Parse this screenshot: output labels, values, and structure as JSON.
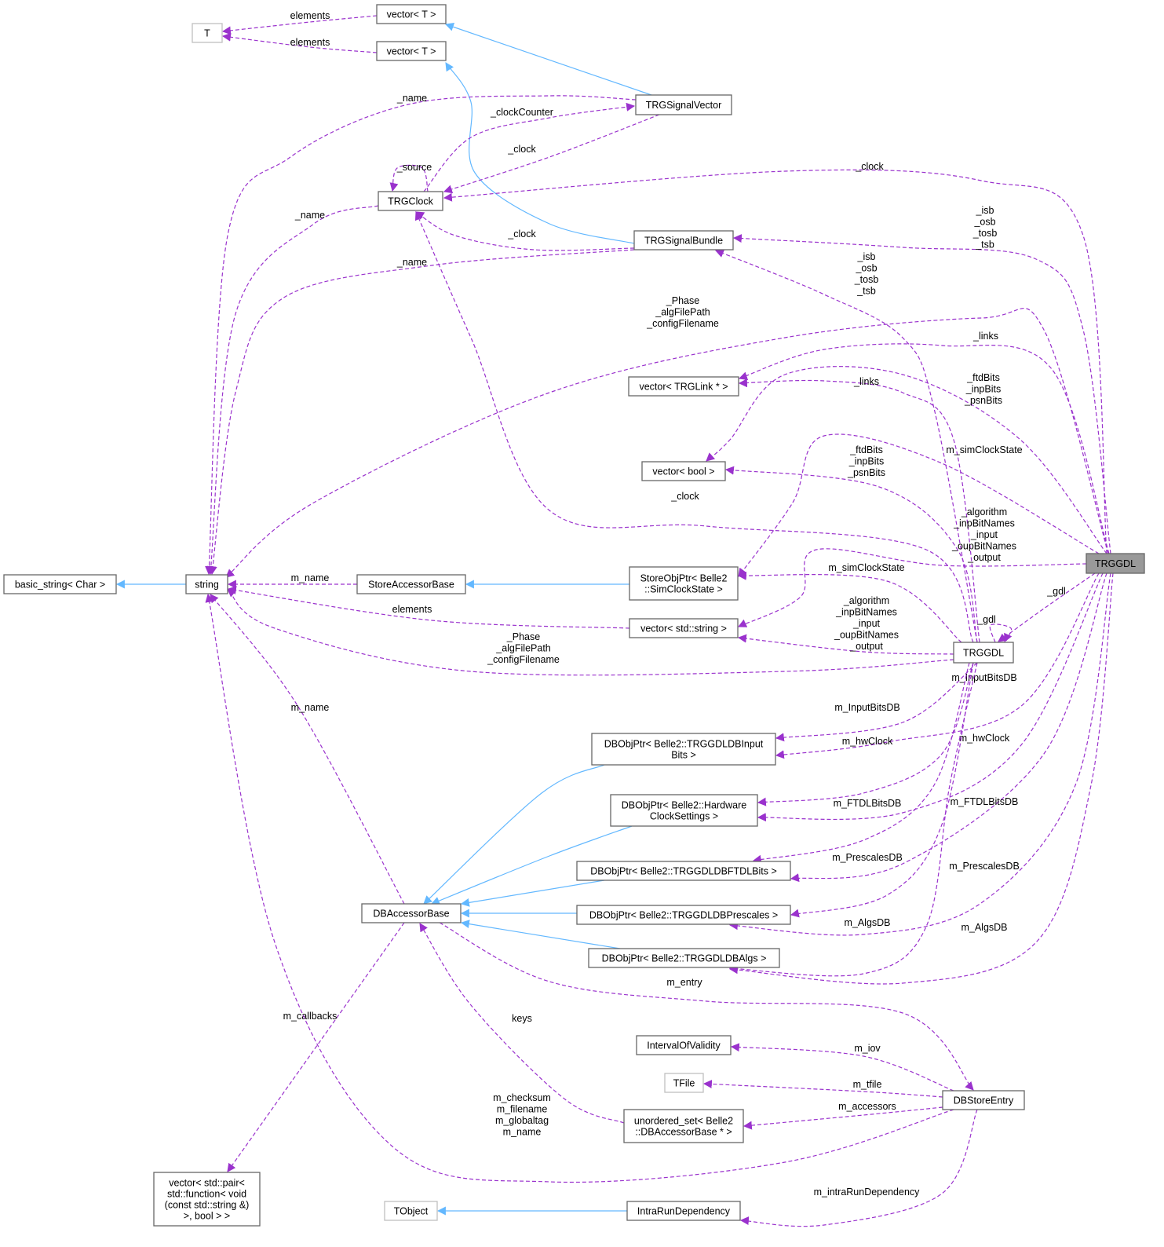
{
  "colors": {
    "member_edge": "#9a32cd",
    "inherit_edge": "#63b8ff",
    "focus_fill": "#999999"
  },
  "nodes": [
    {
      "id": "T",
      "label": [
        "T"
      ],
      "style": "gray"
    },
    {
      "id": "vecT1",
      "label": [
        "vector< T >"
      ]
    },
    {
      "id": "vecT2",
      "label": [
        "vector< T >"
      ]
    },
    {
      "id": "sigvec",
      "label": [
        "TRGSignalVector"
      ]
    },
    {
      "id": "clock",
      "label": [
        "TRGClock"
      ]
    },
    {
      "id": "bundle",
      "label": [
        "TRGSignalBundle"
      ]
    },
    {
      "id": "vlink",
      "label": [
        "vector< TRGLink * >"
      ]
    },
    {
      "id": "vbool",
      "label": [
        "vector< bool >"
      ]
    },
    {
      "id": "storeobj",
      "label": [
        "StoreObjPtr< Belle2",
        "::SimClockState >"
      ]
    },
    {
      "id": "vstr",
      "label": [
        "vector< std::string >"
      ]
    },
    {
      "id": "gdl",
      "label": [
        "TRGGDL"
      ],
      "style": "focus"
    },
    {
      "id": "gdl2",
      "label": [
        "TRGGDL"
      ]
    },
    {
      "id": "bstr",
      "label": [
        "basic_string< Char >"
      ]
    },
    {
      "id": "str",
      "label": [
        "string"
      ]
    },
    {
      "id": "sab",
      "label": [
        "StoreAccessorBase"
      ]
    },
    {
      "id": "dbin",
      "label": [
        "DBObjPtr< Belle2::TRGGDLDBInput",
        "Bits >"
      ]
    },
    {
      "id": "dbhw",
      "label": [
        "DBObjPtr< Belle2::Hardware",
        "ClockSettings >"
      ]
    },
    {
      "id": "dbftdl",
      "label": [
        "DBObjPtr< Belle2::TRGGDLDBFTDLBits >"
      ]
    },
    {
      "id": "dbpre",
      "label": [
        "DBObjPtr< Belle2::TRGGDLDBPrescales >"
      ]
    },
    {
      "id": "dbalg",
      "label": [
        "DBObjPtr< Belle2::TRGGDLDBAlgs >"
      ]
    },
    {
      "id": "dbab",
      "label": [
        "DBAccessorBase"
      ]
    },
    {
      "id": "iov",
      "label": [
        "IntervalOfValidity"
      ]
    },
    {
      "id": "tfile",
      "label": [
        "TFile"
      ],
      "style": "gray"
    },
    {
      "id": "uset",
      "label": [
        "unordered_set< Belle2",
        "::DBAccessorBase * >"
      ]
    },
    {
      "id": "dbse",
      "label": [
        "DBStoreEntry"
      ]
    },
    {
      "id": "vpair",
      "label": [
        "vector< std::pair<",
        "std::function< void",
        "(const std::string &)",
        ">, bool > >"
      ]
    },
    {
      "id": "tobj",
      "label": [
        "TObject"
      ],
      "style": "gray"
    },
    {
      "id": "intra",
      "label": [
        "IntraRunDependency"
      ]
    }
  ],
  "edges": [
    {
      "from": "vecT1",
      "to": "T",
      "kind": "member",
      "label": [
        "elements"
      ]
    },
    {
      "from": "vecT2",
      "to": "T",
      "kind": "member",
      "label": [
        "elements"
      ]
    },
    {
      "from": "sigvec",
      "to": "vecT1",
      "kind": "inherit",
      "label": []
    },
    {
      "from": "bundle",
      "to": "vecT2",
      "kind": "inherit",
      "label": []
    },
    {
      "from": "sigvec",
      "to": "str",
      "kind": "member",
      "label": [
        "_name"
      ]
    },
    {
      "from": "clock",
      "to": "sigvec",
      "kind": "member",
      "label": [
        "_clockCounter"
      ]
    },
    {
      "from": "sigvec",
      "to": "clock",
      "kind": "member",
      "label": [
        "_clock"
      ]
    },
    {
      "from": "clock",
      "to": "clock",
      "kind": "member",
      "label": [
        "_source"
      ]
    },
    {
      "from": "gdl",
      "to": "clock",
      "kind": "member",
      "label": [
        "_clock"
      ]
    },
    {
      "from": "clock",
      "to": "str",
      "kind": "member",
      "label": [
        "_name"
      ]
    },
    {
      "from": "bundle",
      "to": "clock",
      "kind": "member",
      "label": [
        "_clock"
      ]
    },
    {
      "from": "bundle",
      "to": "str",
      "kind": "member",
      "label": [
        "_name"
      ]
    },
    {
      "from": "gdl",
      "to": "bundle",
      "kind": "member",
      "label": [
        "_isb",
        "_osb",
        "_tosb",
        "_tsb"
      ]
    },
    {
      "from": "gdl2",
      "to": "bundle",
      "kind": "member",
      "label": [
        "_isb",
        "_osb",
        "_tosb",
        "_tsb"
      ]
    },
    {
      "from": "gdl",
      "to": "str",
      "kind": "member",
      "label": [
        "_Phase",
        "_algFilePath",
        "_configFilename"
      ]
    },
    {
      "from": "gdl",
      "to": "vlink",
      "kind": "member",
      "label": [
        "_links"
      ]
    },
    {
      "from": "gdl2",
      "to": "vlink",
      "kind": "member",
      "label": [
        "_links"
      ]
    },
    {
      "from": "gdl",
      "to": "vbool",
      "kind": "member",
      "label": [
        "_ftdBits",
        "_inpBits",
        "_psnBits"
      ]
    },
    {
      "from": "gdl2",
      "to": "vbool",
      "kind": "member",
      "label": [
        "_ftdBits",
        "_inpBits",
        "_psnBits"
      ]
    },
    {
      "from": "gdl",
      "to": "storeobj",
      "kind": "member",
      "label": [
        "m_simClockState"
      ]
    },
    {
      "from": "gdl2",
      "to": "clock",
      "kind": "member",
      "label": [
        "_clock"
      ]
    },
    {
      "from": "gdl",
      "to": "vstr",
      "kind": "member",
      "label": [
        "_algorithm",
        "_inpBitNames",
        "_input",
        "_oupBitNames",
        "_output"
      ]
    },
    {
      "from": "gdl2",
      "to": "storeobj",
      "kind": "member",
      "label": [
        "m_simClockState"
      ]
    },
    {
      "from": "gdl2",
      "to": "vstr",
      "kind": "member",
      "label": [
        "_algorithm",
        "_inpBitNames",
        "_input",
        "_oupBitNames",
        "_output"
      ]
    },
    {
      "from": "gdl2",
      "to": "str",
      "kind": "member",
      "label": [
        "_Phase",
        "_algFilePath",
        "_configFilename"
      ]
    },
    {
      "from": "gdl2",
      "to": "gdl2",
      "kind": "member",
      "label": [
        "_gdl"
      ]
    },
    {
      "from": "gdl",
      "to": "gdl2",
      "kind": "member",
      "label": [
        "_gdl"
      ]
    },
    {
      "from": "str",
      "to": "bstr",
      "kind": "inherit",
      "label": []
    },
    {
      "from": "sab",
      "to": "str",
      "kind": "member",
      "label": [
        "m_name"
      ]
    },
    {
      "from": "storeobj",
      "to": "sab",
      "kind": "inherit",
      "label": []
    },
    {
      "from": "vstr",
      "to": "str",
      "kind": "member",
      "label": [
        "elements"
      ]
    },
    {
      "from": "dbab",
      "to": "str",
      "kind": "member",
      "label": [
        "m_name"
      ]
    },
    {
      "from": "gdl2",
      "to": "dbin",
      "kind": "member",
      "label": [
        "m_InputBitsDB"
      ]
    },
    {
      "from": "gdl",
      "to": "dbin",
      "kind": "member",
      "label": [
        "m_InputBitsDB"
      ]
    },
    {
      "from": "gdl",
      "to": "dbhw",
      "kind": "member",
      "label": [
        "m_hwClock"
      ]
    },
    {
      "from": "gdl2",
      "to": "dbhw",
      "kind": "member",
      "label": [
        "m_hwClock"
      ]
    },
    {
      "from": "gdl2",
      "to": "dbftdl",
      "kind": "member",
      "label": [
        "m_FTDLBitsDB"
      ]
    },
    {
      "from": "gdl",
      "to": "dbftdl",
      "kind": "member",
      "label": [
        "m_FTDLBitsDB"
      ]
    },
    {
      "from": "gdl2",
      "to": "dbpre",
      "kind": "member",
      "label": [
        "m_PrescalesDB"
      ]
    },
    {
      "from": "gdl",
      "to": "dbpre",
      "kind": "member",
      "label": [
        "m_PrescalesDB"
      ]
    },
    {
      "from": "gdl2",
      "to": "dbalg",
      "kind": "member",
      "label": [
        "m_AlgsDB"
      ]
    },
    {
      "from": "gdl",
      "to": "dbalg",
      "kind": "member",
      "label": [
        "m_AlgsDB"
      ]
    },
    {
      "from": "dbin",
      "to": "dbab",
      "kind": "inherit",
      "label": []
    },
    {
      "from": "dbhw",
      "to": "dbab",
      "kind": "inherit",
      "label": []
    },
    {
      "from": "dbftdl",
      "to": "dbab",
      "kind": "inherit",
      "label": []
    },
    {
      "from": "dbpre",
      "to": "dbab",
      "kind": "inherit",
      "label": []
    },
    {
      "from": "dbalg",
      "to": "dbab",
      "kind": "inherit",
      "label": []
    },
    {
      "from": "dbab",
      "to": "dbse",
      "kind": "member",
      "label": [
        "m_entry"
      ]
    },
    {
      "from": "dbab",
      "to": "vpair",
      "kind": "member",
      "label": [
        "m_callbacks"
      ]
    },
    {
      "from": "uset",
      "to": "dbab",
      "kind": "member",
      "label": [
        "keys"
      ]
    },
    {
      "from": "dbse",
      "to": "iov",
      "kind": "member",
      "label": [
        "m_iov"
      ]
    },
    {
      "from": "dbse",
      "to": "tfile",
      "kind": "member",
      "label": [
        "m_tfile"
      ]
    },
    {
      "from": "dbse",
      "to": "uset",
      "kind": "member",
      "label": [
        "m_accessors"
      ]
    },
    {
      "from": "dbse",
      "to": "str",
      "kind": "member",
      "label": [
        "m_checksum",
        "m_filename",
        "m_globaltag",
        "m_name"
      ]
    },
    {
      "from": "dbse",
      "to": "intra",
      "kind": "member",
      "label": [
        "m_intraRunDependency"
      ]
    },
    {
      "from": "intra",
      "to": "tobj",
      "kind": "inherit",
      "label": []
    }
  ]
}
